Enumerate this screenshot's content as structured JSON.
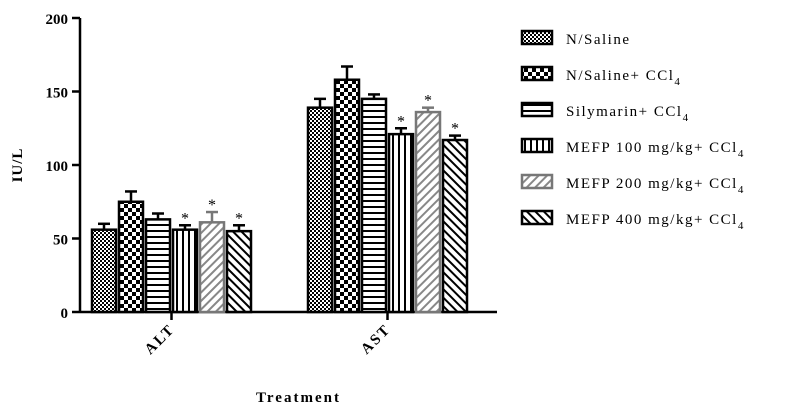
{
  "chart_data": {
    "type": "bar",
    "title": "",
    "xlabel": "Treatment",
    "ylabel": "IU/L",
    "ylim": [
      0,
      200
    ],
    "yticks": [
      0,
      50,
      100,
      150,
      200
    ],
    "categories": [
      "ALT",
      "AST"
    ],
    "series": [
      {
        "name": "N/Saline",
        "name_sub": "",
        "pattern": "checker-fine",
        "values": [
          56,
          139
        ],
        "errors": [
          4,
          6
        ],
        "star": [
          false,
          false
        ]
      },
      {
        "name": "N/Saline+ CCl",
        "name_sub": "4",
        "pattern": "checker-coarse",
        "values": [
          75,
          158
        ],
        "errors": [
          7,
          9
        ],
        "star": [
          false,
          false
        ]
      },
      {
        "name": "Silymarin+ CCl",
        "name_sub": "4",
        "pattern": "hlines",
        "values": [
          63,
          145
        ],
        "errors": [
          4,
          3
        ],
        "star": [
          false,
          false
        ]
      },
      {
        "name": "MEFP 100 mg/kg+ CCl",
        "name_sub": "4",
        "pattern": "vlines",
        "values": [
          56,
          121
        ],
        "errors": [
          3,
          4
        ],
        "star": [
          true,
          true
        ]
      },
      {
        "name": "MEFP 200 mg/kg+ CCl",
        "name_sub": "4",
        "pattern": "diag-gray",
        "values": [
          61,
          136
        ],
        "errors": [
          7,
          3
        ],
        "star": [
          true,
          true
        ]
      },
      {
        "name": "MEFP 400 mg/kg+ CCl",
        "name_sub": "4",
        "pattern": "diag-back",
        "values": [
          55,
          117
        ],
        "errors": [
          4,
          3
        ],
        "star": [
          true,
          true
        ]
      }
    ],
    "significance_marker": "*",
    "legend_position": "right",
    "grid": false
  }
}
